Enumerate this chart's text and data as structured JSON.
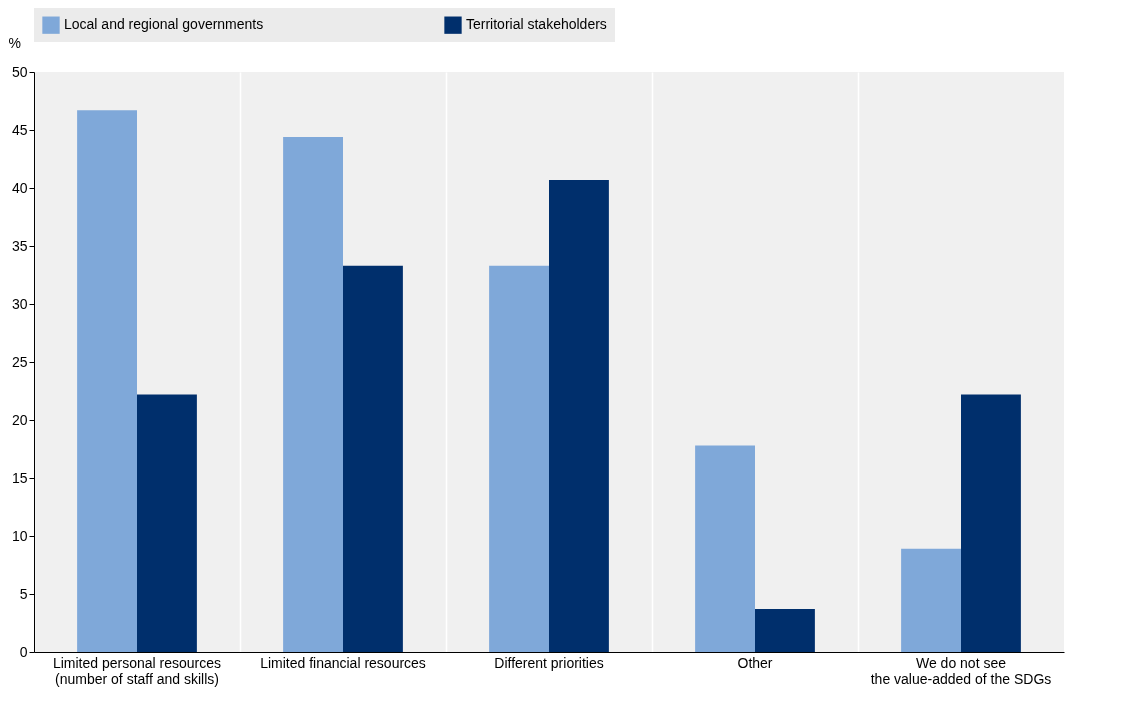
{
  "chart_data": {
    "type": "bar",
    "ylabel": "%",
    "categories": [
      "Limited personal resources\n(number of staff and skills)",
      "Limited financial resources",
      "Different priorities",
      "Other",
      "We do not see\nthe value-added of the SDGs"
    ],
    "series": [
      {
        "name": "Local and regional governments",
        "color": "#7fa8d9",
        "values": [
          46.7,
          44.4,
          33.3,
          17.8,
          8.9
        ]
      },
      {
        "name": "Territorial stakeholders",
        "color": "#002f6c",
        "values": [
          22.2,
          33.3,
          40.7,
          3.7,
          22.2
        ]
      }
    ],
    "ylim": [
      0,
      50
    ],
    "yticks": [
      0,
      5,
      10,
      15,
      20,
      25,
      30,
      35,
      40,
      45,
      50
    ],
    "grid": "x",
    "legend": "top"
  }
}
